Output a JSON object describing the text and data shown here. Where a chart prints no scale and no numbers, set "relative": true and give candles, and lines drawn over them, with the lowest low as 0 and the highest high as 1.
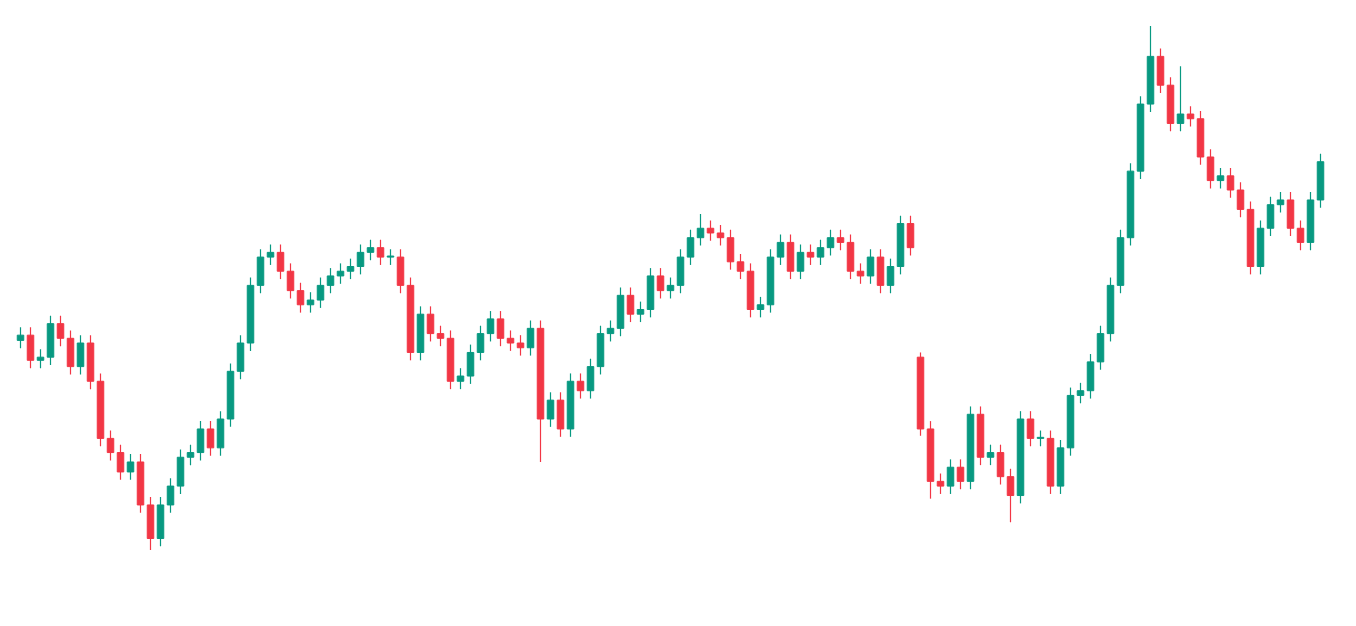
{
  "chart_data": {
    "type": "candlestick",
    "relative": true,
    "categories": [
      null,
      null,
      null,
      null,
      null,
      null,
      null,
      null,
      null,
      null,
      null,
      null,
      null,
      null,
      null,
      null,
      null,
      null,
      null,
      null,
      null,
      null,
      null,
      null,
      null,
      null,
      null,
      null,
      null,
      null,
      null,
      null,
      null,
      null,
      null,
      null,
      null,
      null,
      null,
      null,
      null,
      null,
      null,
      null,
      null,
      null,
      null,
      null,
      null,
      null,
      null,
      null,
      null,
      null,
      null,
      null,
      null,
      null,
      null,
      null,
      null,
      null,
      null,
      null,
      null,
      null,
      null,
      null,
      null,
      null,
      null,
      null,
      null,
      null,
      null,
      null,
      null,
      null,
      null,
      null,
      null,
      null,
      null,
      null,
      null,
      null,
      null,
      null,
      null,
      null,
      null,
      null,
      null,
      null,
      null,
      null,
      null,
      null,
      null,
      null,
      null,
      null,
      null,
      null,
      null,
      null,
      null,
      null,
      null,
      null,
      null,
      null,
      null,
      null,
      null,
      null,
      null,
      null,
      null,
      null,
      null,
      null,
      null,
      null,
      null,
      null,
      null,
      null,
      null,
      null,
      null
    ],
    "ohlc": [
      [
        0.4,
        0.425,
        0.385,
        0.41
      ],
      [
        0.41,
        0.425,
        0.347,
        0.362
      ],
      [
        0.362,
        0.383,
        0.347,
        0.368
      ],
      [
        0.368,
        0.447,
        0.353,
        0.432
      ],
      [
        0.432,
        0.447,
        0.389,
        0.404
      ],
      [
        0.404,
        0.419,
        0.335,
        0.35
      ],
      [
        0.35,
        0.41,
        0.335,
        0.395
      ],
      [
        0.395,
        0.41,
        0.307,
        0.322
      ],
      [
        0.322,
        0.337,
        0.198,
        0.213
      ],
      [
        0.213,
        0.228,
        0.171,
        0.186
      ],
      [
        0.186,
        0.201,
        0.134,
        0.149
      ],
      [
        0.149,
        0.183,
        0.134,
        0.168
      ],
      [
        0.168,
        0.183,
        0.071,
        0.086
      ],
      [
        0.086,
        0.101,
        0,
        0.022
      ],
      [
        0.022,
        0.101,
        0.007,
        0.086
      ],
      [
        0.086,
        0.137,
        0.071,
        0.122
      ],
      [
        0.122,
        0.192,
        0.107,
        0.177
      ],
      [
        0.177,
        0.201,
        0.162,
        0.186
      ],
      [
        0.186,
        0.246,
        0.171,
        0.231
      ],
      [
        0.231,
        0.246,
        0.18,
        0.195
      ],
      [
        0.195,
        0.265,
        0.18,
        0.25
      ],
      [
        0.25,
        0.356,
        0.235,
        0.341
      ],
      [
        0.341,
        0.41,
        0.326,
        0.395
      ],
      [
        0.395,
        0.52,
        0.38,
        0.505
      ],
      [
        0.505,
        0.574,
        0.49,
        0.559
      ],
      [
        0.559,
        0.583,
        0.544,
        0.568
      ],
      [
        0.568,
        0.583,
        0.517,
        0.532
      ],
      [
        0.532,
        0.547,
        0.48,
        0.495
      ],
      [
        0.495,
        0.51,
        0.453,
        0.468
      ],
      [
        0.468,
        0.492,
        0.453,
        0.477
      ],
      [
        0.477,
        0.52,
        0.462,
        0.505
      ],
      [
        0.505,
        0.538,
        0.49,
        0.523
      ],
      [
        0.523,
        0.547,
        0.508,
        0.532
      ],
      [
        0.532,
        0.556,
        0.517,
        0.541
      ],
      [
        0.541,
        0.583,
        0.526,
        0.568
      ],
      [
        0.568,
        0.592,
        0.553,
        0.577
      ],
      [
        0.577,
        0.592,
        0.544,
        0.559
      ],
      [
        0.559,
        0.574,
        0.544,
        0.559
      ],
      [
        0.559,
        0.574,
        0.49,
        0.505
      ],
      [
        0.505,
        0.52,
        0.362,
        0.377
      ],
      [
        0.377,
        0.465,
        0.362,
        0.45
      ],
      [
        0.45,
        0.465,
        0.398,
        0.413
      ],
      [
        0.413,
        0.428,
        0.389,
        0.404
      ],
      [
        0.404,
        0.419,
        0.307,
        0.322
      ],
      [
        0.322,
        0.347,
        0.307,
        0.332
      ],
      [
        0.332,
        0.392,
        0.317,
        0.377
      ],
      [
        0.377,
        0.428,
        0.362,
        0.413
      ],
      [
        0.413,
        0.456,
        0.398,
        0.441
      ],
      [
        0.441,
        0.456,
        0.389,
        0.404
      ],
      [
        0.404,
        0.419,
        0.38,
        0.395
      ],
      [
        0.395,
        0.41,
        0.371,
        0.386
      ],
      [
        0.386,
        0.438,
        0.371,
        0.423
      ],
      [
        0.423,
        0.438,
        0.168,
        0.25
      ],
      [
        0.25,
        0.301,
        0.235,
        0.286
      ],
      [
        0.286,
        0.301,
        0.216,
        0.231
      ],
      [
        0.231,
        0.337,
        0.216,
        0.322
      ],
      [
        0.322,
        0.337,
        0.289,
        0.304
      ],
      [
        0.304,
        0.365,
        0.289,
        0.35
      ],
      [
        0.35,
        0.428,
        0.335,
        0.413
      ],
      [
        0.413,
        0.438,
        0.398,
        0.423
      ],
      [
        0.423,
        0.501,
        0.408,
        0.486
      ],
      [
        0.486,
        0.501,
        0.435,
        0.45
      ],
      [
        0.45,
        0.474,
        0.435,
        0.459
      ],
      [
        0.459,
        0.538,
        0.444,
        0.523
      ],
      [
        0.523,
        0.538,
        0.48,
        0.495
      ],
      [
        0.495,
        0.52,
        0.48,
        0.505
      ],
      [
        0.505,
        0.574,
        0.49,
        0.559
      ],
      [
        0.559,
        0.611,
        0.544,
        0.596
      ],
      [
        0.596,
        0.641,
        0.581,
        0.614
      ],
      [
        0.614,
        0.629,
        0.59,
        0.605
      ],
      [
        0.605,
        0.62,
        0.581,
        0.596
      ],
      [
        0.596,
        0.611,
        0.535,
        0.55
      ],
      [
        0.55,
        0.565,
        0.517,
        0.532
      ],
      [
        0.532,
        0.547,
        0.444,
        0.459
      ],
      [
        0.459,
        0.483,
        0.444,
        0.468
      ],
      [
        0.468,
        0.574,
        0.453,
        0.559
      ],
      [
        0.559,
        0.602,
        0.544,
        0.587
      ],
      [
        0.587,
        0.602,
        0.517,
        0.532
      ],
      [
        0.532,
        0.583,
        0.517,
        0.568
      ],
      [
        0.568,
        0.583,
        0.544,
        0.559
      ],
      [
        0.559,
        0.592,
        0.544,
        0.577
      ],
      [
        0.577,
        0.611,
        0.562,
        0.596
      ],
      [
        0.596,
        0.611,
        0.572,
        0.587
      ],
      [
        0.587,
        0.602,
        0.517,
        0.532
      ],
      [
        0.532,
        0.547,
        0.508,
        0.523
      ],
      [
        0.523,
        0.574,
        0.508,
        0.559
      ],
      [
        0.559,
        0.574,
        0.49,
        0.505
      ],
      [
        0.505,
        0.556,
        0.49,
        0.541
      ],
      [
        0.541,
        0.638,
        0.526,
        0.623
      ],
      [
        0.623,
        0.638,
        0.562,
        0.577
      ],
      [
        0.368,
        0.377,
        0.218,
        0.231
      ],
      [
        0.231,
        0.246,
        0.098,
        0.131
      ],
      [
        0.131,
        0.146,
        0.107,
        0.122
      ],
      [
        0.122,
        0.173,
        0.107,
        0.158
      ],
      [
        0.158,
        0.173,
        0.116,
        0.131
      ],
      [
        0.131,
        0.274,
        0.116,
        0.259
      ],
      [
        0.259,
        0.274,
        0.162,
        0.177
      ],
      [
        0.177,
        0.201,
        0.162,
        0.186
      ],
      [
        0.186,
        0.201,
        0.125,
        0.14
      ],
      [
        0.14,
        0.155,
        0.053,
        0.104
      ],
      [
        0.104,
        0.265,
        0.089,
        0.25
      ],
      [
        0.25,
        0.265,
        0.198,
        0.213
      ],
      [
        0.213,
        0.228,
        0.198,
        0.213
      ],
      [
        0.213,
        0.228,
        0.107,
        0.122
      ],
      [
        0.122,
        0.21,
        0.107,
        0.195
      ],
      [
        0.195,
        0.31,
        0.18,
        0.295
      ],
      [
        0.295,
        0.319,
        0.28,
        0.304
      ],
      [
        0.304,
        0.374,
        0.289,
        0.359
      ],
      [
        0.359,
        0.428,
        0.344,
        0.413
      ],
      [
        0.413,
        0.52,
        0.398,
        0.505
      ],
      [
        0.505,
        0.611,
        0.49,
        0.596
      ],
      [
        0.596,
        0.738,
        0.581,
        0.723
      ],
      [
        0.723,
        0.866,
        0.708,
        0.851
      ],
      [
        0.851,
        1,
        0.836,
        0.942
      ],
      [
        0.942,
        0.957,
        0.872,
        0.887
      ],
      [
        0.887,
        0.902,
        0.799,
        0.814
      ],
      [
        0.814,
        0.923,
        0.799,
        0.832
      ],
      [
        0.832,
        0.847,
        0.808,
        0.823
      ],
      [
        0.823,
        0.838,
        0.735,
        0.75
      ],
      [
        0.75,
        0.765,
        0.69,
        0.705
      ],
      [
        0.705,
        0.729,
        0.69,
        0.714
      ],
      [
        0.714,
        0.729,
        0.672,
        0.687
      ],
      [
        0.687,
        0.702,
        0.635,
        0.65
      ],
      [
        0.65,
        0.665,
        0.526,
        0.541
      ],
      [
        0.541,
        0.629,
        0.526,
        0.614
      ],
      [
        0.614,
        0.674,
        0.599,
        0.659
      ],
      [
        0.659,
        0.683,
        0.644,
        0.668
      ],
      [
        0.668,
        0.683,
        0.599,
        0.614
      ],
      [
        0.614,
        0.629,
        0.572,
        0.587
      ],
      [
        0.587,
        0.683,
        0.572,
        0.668
      ],
      [
        0.668,
        0.756,
        0.653,
        0.741
      ]
    ],
    "colors": [
      "#089981",
      "#f23645",
      "#089981",
      "#089981",
      "#f23645",
      "#f23645",
      "#089981",
      "#f23645",
      "#f23645",
      "#f23645",
      "#f23645",
      "#089981",
      "#f23645",
      "#f23645",
      "#089981",
      "#089981",
      "#089981",
      "#089981",
      "#089981",
      "#f23645",
      "#089981",
      "#089981",
      "#089981",
      "#089981",
      "#089981",
      "#089981",
      "#f23645",
      "#f23645",
      "#f23645",
      "#089981",
      "#089981",
      "#089981",
      "#089981",
      "#089981",
      "#089981",
      "#089981",
      "#f23645",
      "#089981",
      "#f23645",
      "#f23645",
      "#089981",
      "#f23645",
      "#f23645",
      "#f23645",
      "#089981",
      "#089981",
      "#089981",
      "#089981",
      "#f23645",
      "#f23645",
      "#f23645",
      "#089981",
      "#f23645",
      "#089981",
      "#f23645",
      "#089981",
      "#f23645",
      "#089981",
      "#089981",
      "#089981",
      "#089981",
      "#f23645",
      "#089981",
      "#089981",
      "#f23645",
      "#089981",
      "#089981",
      "#089981",
      "#089981",
      "#f23645",
      "#f23645",
      "#f23645",
      "#f23645",
      "#f23645",
      "#089981",
      "#089981",
      "#089981",
      "#f23645",
      "#089981",
      "#f23645",
      "#089981",
      "#089981",
      "#f23645",
      "#f23645",
      "#f23645",
      "#089981",
      "#f23645",
      "#089981",
      "#089981",
      "#f23645",
      "#f23645",
      "#f23645",
      "#f23645",
      "#089981",
      "#f23645",
      "#089981",
      "#f23645",
      "#089981",
      "#f23645",
      "#f23645",
      "#089981",
      "#f23645",
      "#089981",
      "#f23645",
      "#089981",
      "#089981",
      "#089981",
      "#089981",
      "#089981",
      "#089981",
      "#089981",
      "#089981",
      "#089981",
      "#089981",
      "#f23645",
      "#f23645",
      "#089981",
      "#f23645",
      "#f23645",
      "#f23645",
      "#089981",
      "#f23645",
      "#f23645",
      "#f23645",
      "#089981",
      "#089981",
      "#089981",
      "#f23645",
      "#f23645",
      "#089981",
      "#089981"
    ]
  }
}
